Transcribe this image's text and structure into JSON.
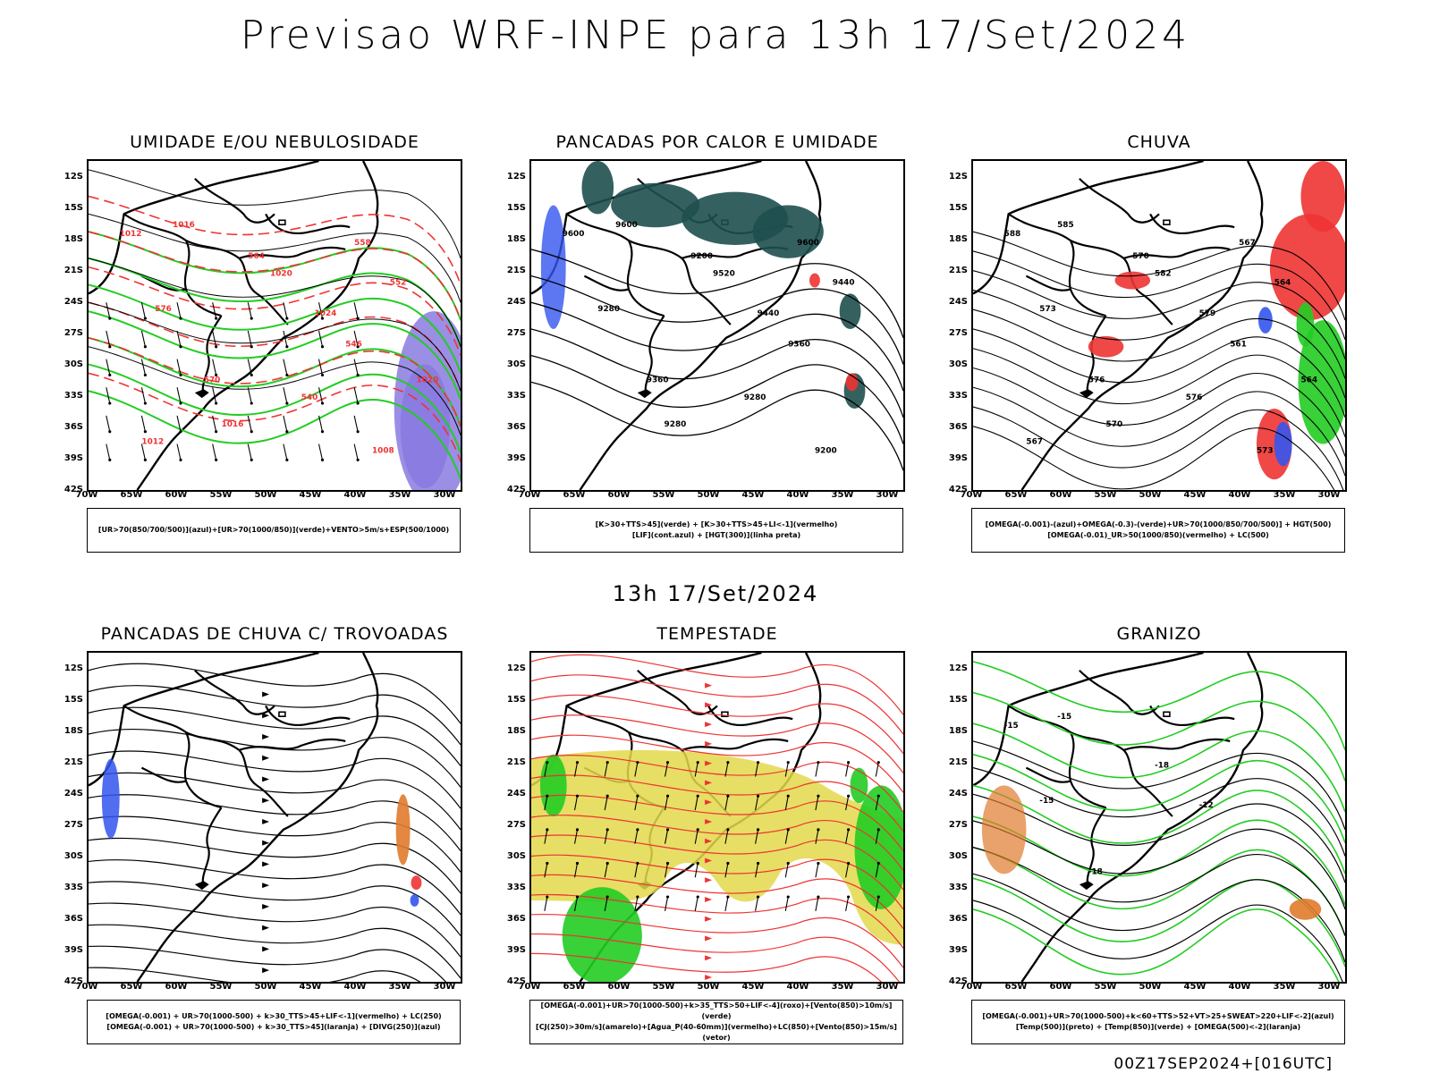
{
  "title": "Previsao WRF-INPE  para 13h 17/Set/2024",
  "subtitle": "13h 17/Set/2024",
  "footer": "00Z17SEP2024+[016UTC]",
  "lat_labels": [
    "12S",
    "15S",
    "18S",
    "21S",
    "24S",
    "27S",
    "30S",
    "33S",
    "36S",
    "39S",
    "42S"
  ],
  "lon_labels": [
    "70W",
    "65W",
    "60W",
    "55W",
    "50W",
    "45W",
    "40W",
    "35W",
    "30W"
  ],
  "colors": {
    "green": "#22cc22",
    "red": "#ee3333",
    "blue": "#3355ee",
    "dark_teal": "#1f4f4f",
    "yellow": "#e3d84a",
    "orange": "#e07a2c",
    "violet": "#8a7ae0"
  },
  "panels": [
    {
      "id": "umidade",
      "title": "UMIDADE E/OU NEBULOSIDADE",
      "legend": [
        "[UR>70(850/700/500)](azul)+[UR>70(1000/850)](verde)+VENTO>5m/s+ESP(500/1000)"
      ],
      "labels": [
        "1012",
        "1016",
        "1020",
        "1024",
        "570",
        "576",
        "564",
        "558",
        "552",
        "546",
        "540",
        "1008",
        "1016",
        "1012",
        "1020"
      ]
    },
    {
      "id": "pancadas_calor",
      "title": "PANCADAS POR CALOR E UMIDADE",
      "legend": [
        "[K>30+TTS>45](verde) + [K>30+TTS>45+LI<-1](vermelho)",
        "[LIF](cont.azul) + [HGT(300)](linha preta)"
      ],
      "labels": [
        "9600",
        "9600",
        "9520",
        "9440",
        "9360",
        "9280",
        "9200",
        "9600",
        "9440",
        "9360",
        "9280",
        "9200",
        "9280"
      ]
    },
    {
      "id": "chuva",
      "title": "CHUVA",
      "legend": [
        "[OMEGA(-0.001)-(azul)+OMEGA(-0.3)-(verde)+UR>70(1000/850/700/500)] + HGT(500)",
        "[OMEGA(-0.01)_UR>50(1000/850)(vermelho) + LC(500)"
      ],
      "labels": [
        "588",
        "585",
        "582",
        "579",
        "576",
        "573",
        "570",
        "567",
        "564",
        "561",
        "576",
        "573",
        "570",
        "567",
        "564"
      ]
    },
    {
      "id": "pancadas_trovoadas",
      "title": "PANCADAS DE CHUVA C/ TROVOADAS",
      "legend": [
        "[OMEGA(-0.001) + UR>70(1000-500) + k>30_TTS>45+LIF<-1](vermelho) + LC(250)",
        "[OMEGA(-0.001) + UR>70(1000-500) + k>30_TTS>45](laranja) + [DIVG(250)](azul)"
      ],
      "labels": []
    },
    {
      "id": "tempestade",
      "title": "TEMPESTADE",
      "legend": [
        "[OMEGA(-0.001)+UR>70(1000-500)+k>35_TTS>50+LIF<-4](roxo)+[Vento(850)>10m/s](verde)",
        "[CJ(250)>30m/s](amarelo)+[Agua_P(40-60mm)](vermelho)+LC(850)+[Vento(850)>15m/s](vetor)"
      ],
      "labels": []
    },
    {
      "id": "granizo",
      "title": "GRANIZO",
      "legend": [
        "[OMEGA(-0.001)+UR>70(1000-500)+k<60+TTS>52+VT>25+SWEAT>220+LIF<-2](azul)",
        "[Temp(500)](preto) + [Temp(850)](verde) + [OMEGA(500)<-2](laranja)"
      ],
      "labels": [
        "-15",
        "-15",
        "-18",
        "-12",
        "-18",
        "-15"
      ]
    }
  ]
}
